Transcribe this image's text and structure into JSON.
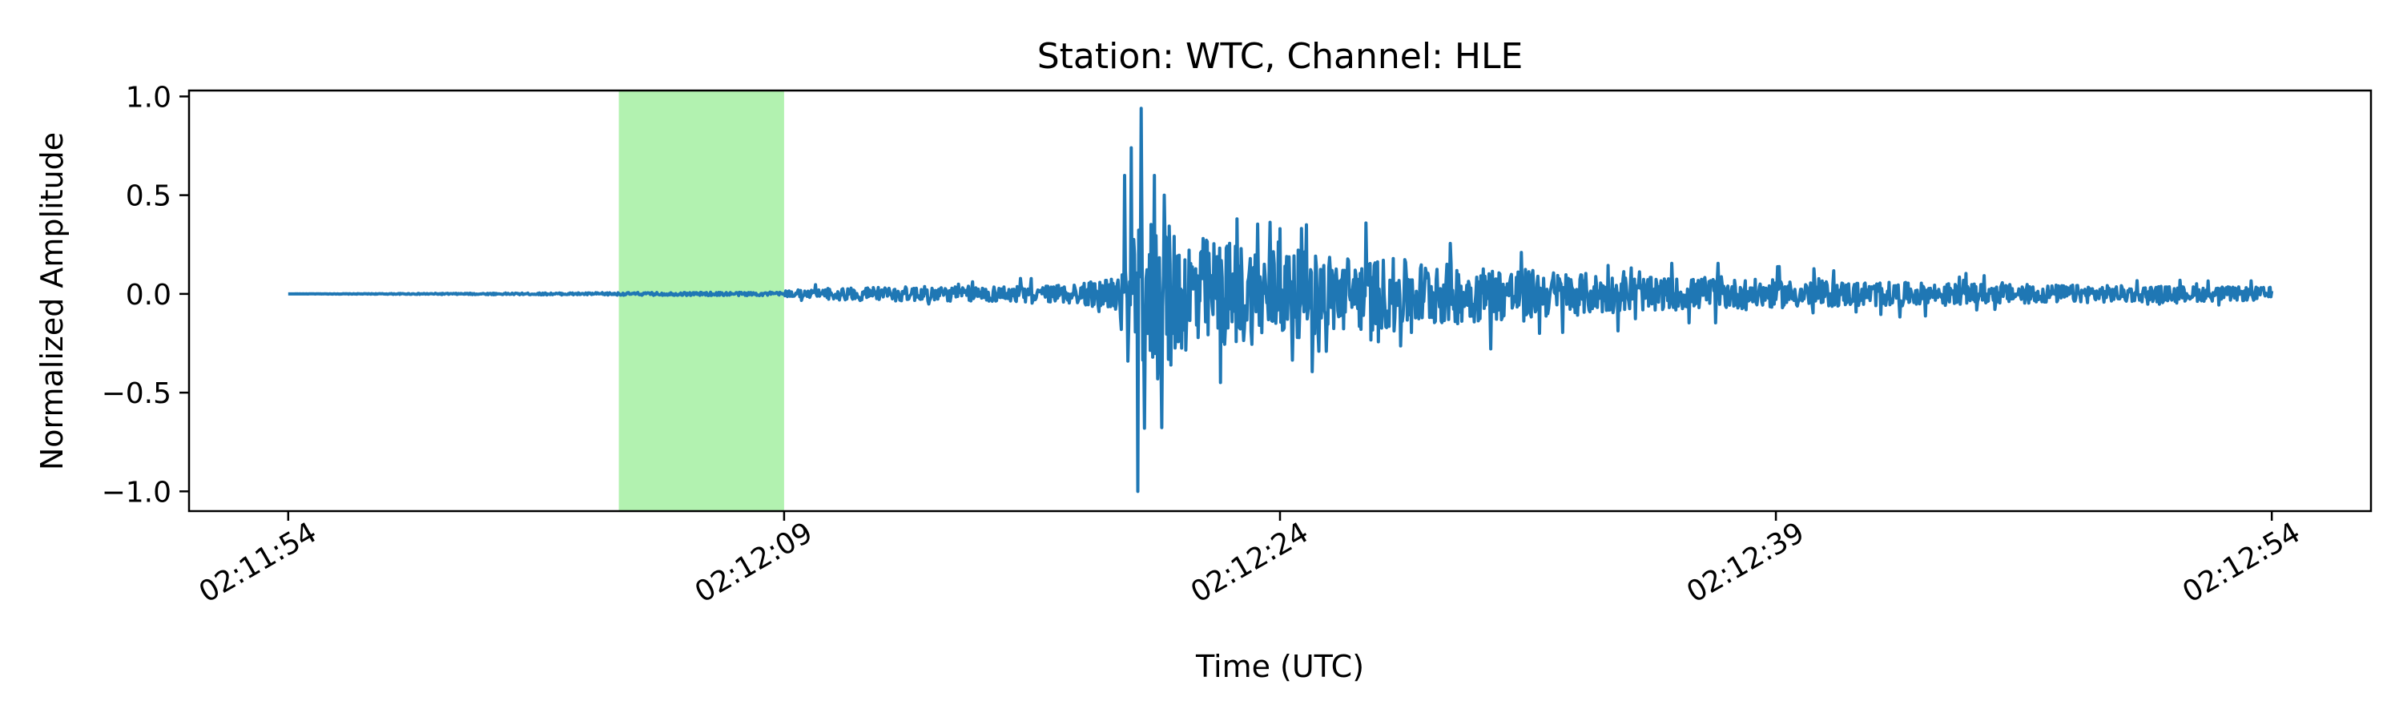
{
  "chart_data": {
    "type": "line",
    "title": "Station: WTC, Channel: HLE",
    "xlabel": "Time (UTC)",
    "ylabel": "Normalized Amplitude",
    "x_ticks": [
      "02:11:54",
      "02:12:09",
      "02:12:24",
      "02:12:39",
      "02:12:54"
    ],
    "xlim": [
      "02:11:51",
      "02:12:57"
    ],
    "x_range": [
      "02:11:54",
      "02:12:54"
    ],
    "y_ticks": [
      1.0,
      0.5,
      0.0,
      -0.5,
      -1.0
    ],
    "y_tick_labels": [
      "1.0",
      "0.5",
      "0.0",
      "−0.5",
      "−1.0"
    ],
    "ylim": [
      -1.1,
      1.03
    ],
    "grid": false,
    "highlight_window": {
      "start": "02:12:04",
      "end": "02:12:09",
      "color": "#b2f2b0"
    },
    "series": [
      {
        "color": "#1f77b4",
        "envelope": [
          {
            "t": "02:11:54",
            "amp": 0.0
          },
          {
            "t": "02:12:09",
            "amp": 0.02
          },
          {
            "t": "02:12:11",
            "amp": 0.04
          },
          {
            "t": "02:12:17",
            "amp": 0.05
          },
          {
            "t": "02:12:19",
            "amp": 0.09
          },
          {
            "t": "02:12:20",
            "amp": 0.5
          },
          {
            "t": "02:12:21",
            "amp": 0.36
          },
          {
            "t": "02:12:25",
            "amp": 0.25
          },
          {
            "t": "02:12:30",
            "amp": 0.17
          },
          {
            "t": "02:12:35",
            "amp": 0.1
          },
          {
            "t": "02:12:45",
            "amp": 0.06
          },
          {
            "t": "02:12:54",
            "amp": 0.04
          }
        ],
        "spikes": [
          {
            "t": "02:12:19.1",
            "value": 0.07
          },
          {
            "t": "02:12:19.2",
            "value": -0.18
          },
          {
            "t": "02:12:19.3",
            "value": 0.6
          },
          {
            "t": "02:12:19.4",
            "value": -0.34
          },
          {
            "t": "02:12:19.5",
            "value": 0.74
          },
          {
            "t": "02:12:19.6",
            "value": 0.2
          },
          {
            "t": "02:12:19.7",
            "value": -1.0
          },
          {
            "t": "02:12:19.8",
            "value": 0.94
          },
          {
            "t": "02:12:19.9",
            "value": -0.68
          },
          {
            "t": "02:12:20.0",
            "value": -0.2
          },
          {
            "t": "02:12:20.2",
            "value": 0.6
          },
          {
            "t": "02:12:20.3",
            "value": -0.43
          },
          {
            "t": "02:12:20.5",
            "value": 0.5
          },
          {
            "t": "02:12:20.7",
            "value": -0.36
          },
          {
            "t": "02:12:24.0",
            "value": 0.33
          },
          {
            "t": "02:12:24.8",
            "value": 0.35
          }
        ]
      }
    ]
  }
}
